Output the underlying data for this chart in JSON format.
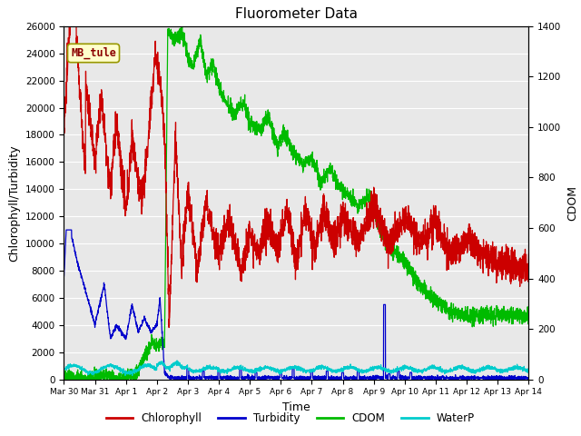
{
  "title": "Fluorometer Data",
  "xlabel": "Time",
  "ylabel_left": "Chlorophyll/Turbidity",
  "ylabel_right": "CDOM",
  "ylim_left": [
    0,
    26000
  ],
  "ylim_right": [
    0,
    1400
  ],
  "yticks_left": [
    0,
    2000,
    4000,
    6000,
    8000,
    10000,
    12000,
    14000,
    16000,
    18000,
    20000,
    22000,
    24000,
    26000
  ],
  "yticks_right": [
    0,
    200,
    400,
    600,
    800,
    1000,
    1200,
    1400
  ],
  "annotation_text": "MB_tule",
  "bg_color": "#e8e8e8",
  "legend_entries": [
    "Chlorophyll",
    "Turbidity",
    "CDOM",
    "WaterP"
  ],
  "legend_colors": [
    "#cc0000",
    "#0000cc",
    "#00cc00",
    "#00cccc"
  ],
  "x_tick_labels": [
    "Mar 30",
    "Mar 31",
    "Apr 1",
    "Apr 2",
    "Apr 3",
    "Apr 4",
    "Apr 5",
    "Apr 6",
    "Apr 7",
    "Apr 8",
    "Apr 9",
    "Apr 10",
    "Apr 11",
    "Apr 12",
    "Apr 13",
    "Apr 14"
  ],
  "x_tick_positions": [
    0,
    1,
    2,
    3,
    4,
    5,
    6,
    7,
    8,
    9,
    10,
    11,
    12,
    13,
    14,
    15
  ]
}
